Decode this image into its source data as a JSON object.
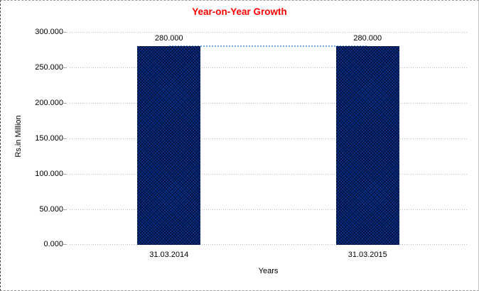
{
  "chart_data": {
    "type": "bar",
    "title": "Year-on-Year Growth",
    "xlabel": "Years",
    "ylabel": "Rs.in Million",
    "categories": [
      "31.03.2014",
      "31.03.2015"
    ],
    "values": [
      280,
      280
    ],
    "data_labels": [
      "280.000",
      "280.000"
    ],
    "ytick_values": [
      0,
      50,
      100,
      150,
      200,
      250,
      300
    ],
    "ytick_labels": [
      "0.000",
      "50.000",
      "100.000",
      "150.000",
      "200.000",
      "250.000",
      "300.000"
    ],
    "ylim": [
      0,
      300
    ],
    "grid": true,
    "legend": false,
    "connector_line": true,
    "colors": {
      "title": "#FF0000",
      "bar": "#0B3490",
      "bar_pattern": "#020828",
      "connector": "#6FA8DC",
      "gridline": "#B9B9B9",
      "text": "#000000"
    }
  }
}
